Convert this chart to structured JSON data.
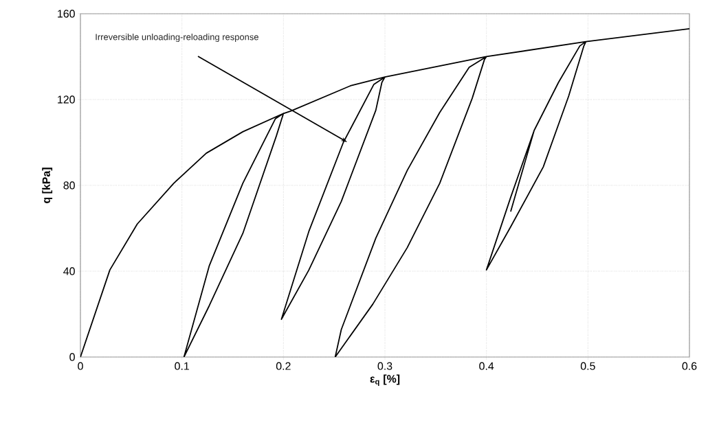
{
  "chart_data": {
    "type": "line",
    "xlabel": "ε$_{q}$ [%]",
    "ylabel": "q [kPa]",
    "x": [
      0,
      0.029,
      0.056,
      0.092,
      0.124,
      0.16,
      0.2,
      0.193,
      0.16,
      0.127,
      0.102,
      0.127,
      0.16,
      0.192,
      0.2,
      0.207,
      0.266,
      0.3,
      0.297,
      0.291,
      0.257,
      0.225,
      0.198,
      0.225,
      0.259,
      0.289,
      0.3,
      0.4,
      0.398,
      0.386,
      0.354,
      0.322,
      0.288,
      0.251,
      0.257,
      0.291,
      0.322,
      0.354,
      0.383,
      0.4,
      0.498,
      0.496,
      0.481,
      0.456,
      0.424,
      0.4,
      0.424,
      0.447,
      0.424,
      0.447,
      0.471,
      0.492,
      0.498,
      0.6
    ],
    "values": [
      0,
      40.6,
      62,
      81,
      95,
      105,
      113.5,
      103,
      57.6,
      24,
      0,
      42.6,
      81,
      111,
      113.5,
      114.6,
      126.4,
      130.5,
      128,
      115,
      72.5,
      40.5,
      17.6,
      58.5,
      100,
      127,
      130.5,
      140,
      138.6,
      120.6,
      81,
      51,
      24.6,
      0,
      12.8,
      55.4,
      87,
      114,
      135,
      140,
      147,
      145,
      121.6,
      88.6,
      60.8,
      40.6,
      74.6,
      105.6,
      68,
      105.6,
      128,
      145,
      147,
      153
    ],
    "color": "#000000",
    "marker": "none",
    "line_style": "solid",
    "xlim": [
      0,
      0.6
    ],
    "ylim": [
      0,
      160
    ],
    "xticks": [
      0,
      0.1,
      0.2,
      0.3,
      0.4,
      0.5,
      0.6
    ],
    "yticks": [
      0,
      40,
      80,
      120,
      160
    ],
    "grid": true,
    "annotations": [
      "Irreversible unloading-reloading response"
    ]
  }
}
